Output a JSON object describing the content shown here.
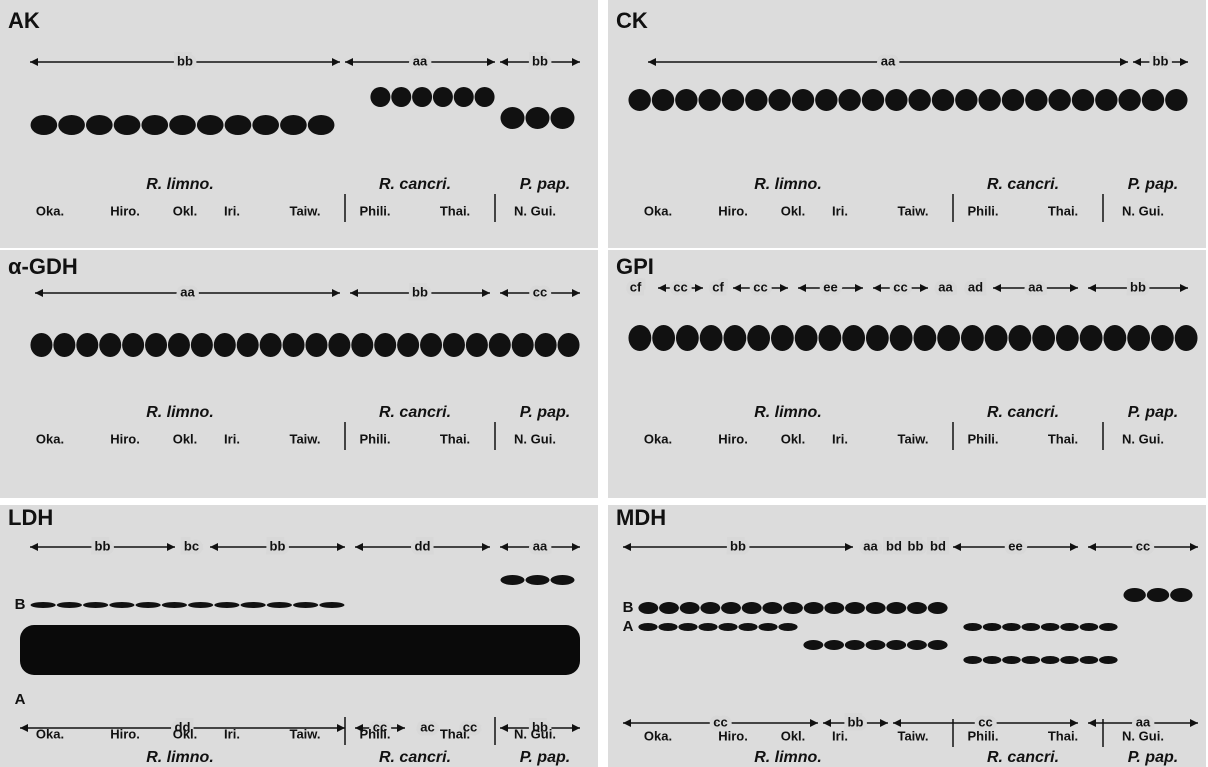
{
  "panels": [
    {
      "title": "AK",
      "genotypes": [
        "bb",
        "aa",
        "bb"
      ],
      "species": [
        "R. limno.",
        "R. cancri.",
        "P. pap."
      ],
      "populations": [
        "Oka.",
        "Hiro.",
        "Okl.",
        "Iri.",
        "Taiw.",
        "Phili.",
        "Thai.",
        "N. Gui."
      ]
    },
    {
      "title": "CK",
      "genotypes": [
        "aa",
        "bb"
      ],
      "species": [
        "R. limno.",
        "R. cancri.",
        "P. pap."
      ],
      "populations": [
        "Oka.",
        "Hiro.",
        "Okl.",
        "Iri.",
        "Taiw.",
        "Phili.",
        "Thai.",
        "N. Gui."
      ]
    },
    {
      "title": "α-GDH",
      "genotypes": [
        "aa",
        "bb",
        "cc"
      ],
      "species": [
        "R. limno.",
        "R. cancri.",
        "P. pap."
      ],
      "populations": [
        "Oka.",
        "Hiro.",
        "Okl.",
        "Iri.",
        "Taiw.",
        "Phili.",
        "Thai.",
        "N. Gui."
      ]
    },
    {
      "title": "GPI",
      "genotypes": [
        "cf",
        "cc",
        "cf",
        "cc",
        "ee",
        "cc",
        "aa",
        "ad",
        "aa",
        "bb"
      ],
      "species": [
        "R. limno.",
        "R. cancri.",
        "P. pap."
      ],
      "populations": [
        "Oka.",
        "Hiro.",
        "Okl.",
        "Iri.",
        "Taiw.",
        "Phili.",
        "Thai.",
        "N. Gui."
      ]
    },
    {
      "title": "LDH",
      "genotypes": [
        "bb",
        "bc",
        "bb",
        "dd",
        "aa"
      ],
      "genotypes_bottom": [
        "dd",
        "cc",
        "ac",
        "cc",
        "bb"
      ],
      "band_labels": [
        "B",
        "A"
      ],
      "species": [
        "R. limno.",
        "R. cancri.",
        "P. pap."
      ],
      "populations": [
        "Oka.",
        "Hiro.",
        "Okl.",
        "Iri.",
        "Taiw.",
        "Phili.",
        "Thai.",
        "N. Gui."
      ]
    },
    {
      "title": "MDH",
      "genotypes": [
        "bb",
        "aa",
        "bd",
        "bb",
        "bd",
        "ee",
        "cc"
      ],
      "genotypes_bottom": [
        "cc",
        "bb",
        "cc",
        "aa"
      ],
      "band_labels": [
        "B",
        "A"
      ],
      "species": [
        "R. limno.",
        "R. cancri.",
        "P. pap."
      ],
      "populations": [
        "Oka.",
        "Hiro.",
        "Okl.",
        "Iri.",
        "Taiw.",
        "Phili.",
        "Thai.",
        "N. Gui."
      ]
    }
  ]
}
